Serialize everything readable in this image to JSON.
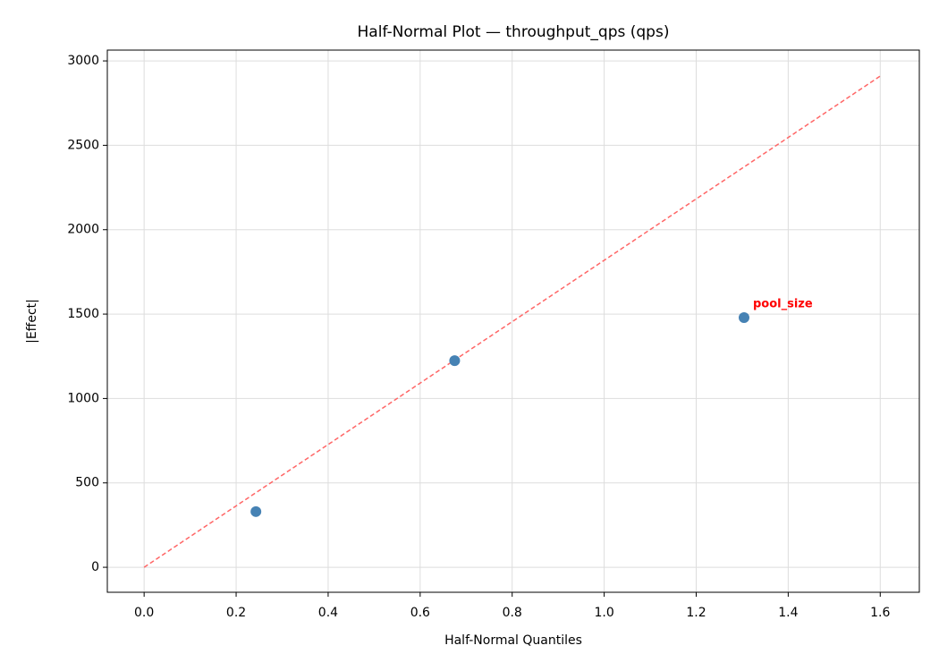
{
  "chart_data": {
    "type": "scatter",
    "title": "Half-Normal Plot — throughput_qps (qps)",
    "xlabel": "Half-Normal Quantiles",
    "ylabel": "|Effect|",
    "x": [
      0.243,
      0.675,
      1.304
    ],
    "values": [
      330,
      1224,
      1479
    ],
    "color": "#4682b4",
    "reference_line": {
      "x": [
        0,
        1.6
      ],
      "values": [
        0,
        2910
      ],
      "color": "#ff6666",
      "style": "dashed"
    },
    "annotations": [
      {
        "text": "pool_size",
        "index": 2,
        "color": "#ff0000"
      }
    ],
    "xlim": [
      -0.08,
      1.685
    ],
    "ylim": [
      -148,
      3064
    ],
    "xticks": [
      {
        "value": 0,
        "label": "0.0"
      },
      0.2,
      0.4,
      0.6,
      0.8,
      {
        "value": 1,
        "label": "1.0"
      },
      1.2,
      1.4,
      1.6
    ],
    "yticks": [
      0,
      500,
      1000,
      1500,
      2000,
      2500,
      3000
    ],
    "grid": true
  }
}
